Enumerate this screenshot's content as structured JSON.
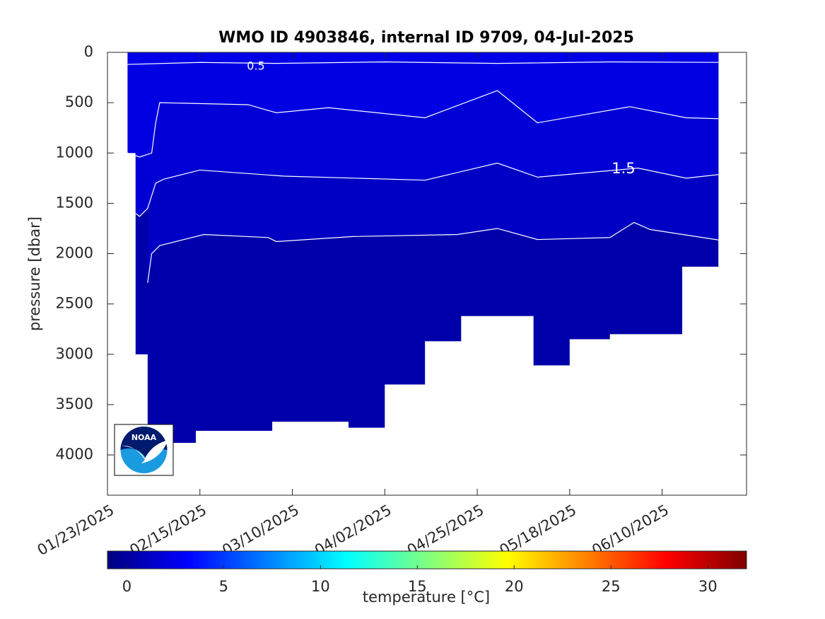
{
  "chart_data": {
    "type": "section",
    "title": "WMO ID 4903846, internal ID 9709, 04-Jul-2025",
    "ylabel": "pressure [dbar]",
    "xlim": [
      "2025-01-23",
      "2025-07-01"
    ],
    "xticks": [
      {
        "value": "2025-01-23",
        "label": "01/23/2025"
      },
      {
        "value": "2025-02-15",
        "label": "02/15/2025"
      },
      {
        "value": "2025-03-10",
        "label": "03/10/2025"
      },
      {
        "value": "2025-04-02",
        "label": "04/02/2025"
      },
      {
        "value": "2025-04-25",
        "label": "04/25/2025"
      },
      {
        "value": "2025-05-18",
        "label": "05/18/2025"
      },
      {
        "value": "2025-06-10",
        "label": "06/10/2025"
      }
    ],
    "ylim": [
      0,
      4400
    ],
    "y_reversed": true,
    "yticks": [
      0,
      500,
      1000,
      1500,
      2000,
      2500,
      3000,
      3500,
      4000
    ],
    "section": {
      "color": "#0000aa",
      "x": [
        "2025-01-28",
        "2025-01-28",
        "2025-01-30",
        "2025-01-30",
        "2025-02-02",
        "2025-02-02",
        "2025-02-14",
        "2025-02-14",
        "2025-03-05",
        "2025-03-05",
        "2025-03-24",
        "2025-03-24",
        "2025-04-02",
        "2025-04-02",
        "2025-04-12",
        "2025-04-12",
        "2025-04-21",
        "2025-04-21",
        "2025-05-09",
        "2025-05-09",
        "2025-05-18",
        "2025-05-18",
        "2025-05-28",
        "2025-05-28",
        "2025-06-15",
        "2025-06-15",
        "2025-06-24",
        "2025-06-24"
      ],
      "pressure": [
        0,
        1000,
        1000,
        3000,
        3000,
        3880,
        3880,
        3760,
        3760,
        3670,
        3670,
        3730,
        3730,
        3300,
        3300,
        2870,
        2870,
        2620,
        2620,
        3110,
        3110,
        2850,
        2850,
        2800,
        2800,
        2130,
        2130,
        0
      ]
    },
    "contours": [
      {
        "level": 1,
        "fill": "#0000c4",
        "x": [
          "2025-02-02",
          "2025-02-03",
          "2025-02-05",
          "2025-02-16",
          "2025-03-04",
          "2025-03-06",
          "2025-03-25",
          "2025-04-20",
          "2025-04-30",
          "2025-05-10",
          "2025-05-28",
          "2025-06-03",
          "2025-06-07",
          "2025-06-25"
        ],
        "pressure": [
          2290,
          2000,
          1920,
          1810,
          1840,
          1880,
          1830,
          1810,
          1750,
          1860,
          1840,
          1690,
          1760,
          1870
        ]
      },
      {
        "level": 1.5,
        "fill": "#0000d6",
        "x": [
          "2025-01-30",
          "2025-01-31",
          "2025-02-02",
          "2025-02-04",
          "2025-02-06",
          "2025-02-15",
          "2025-03-08",
          "2025-04-12",
          "2025-04-30",
          "2025-05-10",
          "2025-06-04",
          "2025-06-16",
          "2025-06-25"
        ],
        "pressure": [
          1600,
          1630,
          1550,
          1300,
          1260,
          1170,
          1230,
          1270,
          1100,
          1240,
          1150,
          1250,
          1210
        ]
      },
      {
        "level": 2,
        "fill": "#0000e2",
        "x": [
          "2025-01-28",
          "2025-01-31",
          "2025-02-03",
          "2025-02-04",
          "2025-02-05",
          "2025-02-27",
          "2025-03-06",
          "2025-03-19",
          "2025-04-12",
          "2025-04-30",
          "2025-05-10",
          "2025-06-02",
          "2025-06-16",
          "2025-06-25"
        ],
        "pressure": [
          1000,
          1040,
          1000,
          700,
          500,
          520,
          600,
          550,
          650,
          380,
          700,
          540,
          650,
          660
        ]
      },
      {
        "level": 0.5,
        "fill": "#0000e8",
        "x": [
          "2025-01-28",
          "2025-02-15",
          "2025-03-06",
          "2025-04-02",
          "2025-04-30",
          "2025-05-28",
          "2025-06-25"
        ],
        "pressure": [
          120,
          100,
          110,
          95,
          110,
          95,
          100
        ]
      }
    ],
    "colormap": "jet",
    "clim": [
      -1,
      32
    ],
    "cticks": [
      0,
      5,
      10,
      15,
      20,
      25,
      30
    ],
    "clabel": "temperature [°C]",
    "logo": "NOAA"
  }
}
